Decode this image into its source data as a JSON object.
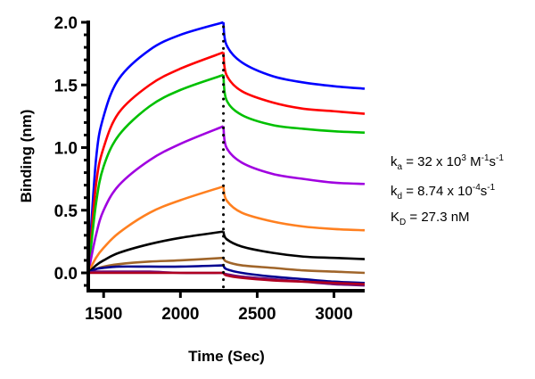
{
  "chart_data": {
    "type": "line",
    "title": "",
    "xlabel": "Time (Sec)",
    "ylabel": "Binding (nm)",
    "xlim": [
      1400,
      3200
    ],
    "ylim": [
      -0.135,
      2.0
    ],
    "xticks": [
      "1500",
      "2000",
      "2500",
      "3000"
    ],
    "xtick_values": [
      1500,
      2000,
      2500,
      3000
    ],
    "yticks": [
      "0.0",
      "0.5",
      "1.0",
      "1.5",
      "2.0"
    ],
    "ytick_values": [
      0.0,
      0.5,
      1.0,
      1.5,
      2.0
    ],
    "grid": false,
    "dissociation_start": 2280,
    "x": [
      1400,
      1450,
      1500,
      1600,
      1800,
      2000,
      2280,
      2300,
      2400,
      2600,
      2800,
      3000,
      3200
    ],
    "series": [
      {
        "color": "#0000ff",
        "values": [
          0,
          0.9,
          1.25,
          1.55,
          1.78,
          1.9,
          2.0,
          1.82,
          1.68,
          1.57,
          1.52,
          1.49,
          1.47
        ]
      },
      {
        "color": "#ff0000",
        "values": [
          0,
          0.7,
          1.0,
          1.28,
          1.5,
          1.63,
          1.76,
          1.58,
          1.45,
          1.36,
          1.31,
          1.29,
          1.27
        ]
      },
      {
        "color": "#00c000",
        "values": [
          0,
          0.55,
          0.85,
          1.1,
          1.33,
          1.46,
          1.58,
          1.38,
          1.26,
          1.18,
          1.15,
          1.13,
          1.12
        ]
      },
      {
        "color": "#a000e0",
        "values": [
          0,
          0.3,
          0.5,
          0.7,
          0.9,
          1.03,
          1.17,
          1.0,
          0.88,
          0.79,
          0.75,
          0.72,
          0.71
        ]
      },
      {
        "color": "#ff8020",
        "values": [
          0,
          0.12,
          0.2,
          0.32,
          0.48,
          0.58,
          0.69,
          0.58,
          0.48,
          0.41,
          0.37,
          0.35,
          0.34
        ]
      },
      {
        "color": "#000000",
        "values": [
          0,
          0.06,
          0.1,
          0.16,
          0.23,
          0.28,
          0.33,
          0.27,
          0.21,
          0.16,
          0.13,
          0.12,
          0.11
        ]
      },
      {
        "color": "#a0652a",
        "values": [
          0,
          0.03,
          0.05,
          0.07,
          0.09,
          0.1,
          0.12,
          0.09,
          0.06,
          0.04,
          0.02,
          0.01,
          0.0
        ]
      },
      {
        "color": "#000090",
        "values": [
          0,
          0.03,
          0.04,
          0.05,
          0.05,
          0.05,
          0.06,
          0.03,
          0.0,
          -0.03,
          -0.05,
          -0.07,
          -0.08
        ]
      },
      {
        "color": "#70107a",
        "values": [
          0,
          0.01,
          0.01,
          0.01,
          0.01,
          0.0,
          0.0,
          -0.01,
          -0.03,
          -0.05,
          -0.07,
          -0.09,
          -0.1
        ]
      },
      {
        "color": "#b00020",
        "values": [
          0,
          0.0,
          0.0,
          0.0,
          0.0,
          0.0,
          0.0,
          -0.02,
          -0.04,
          -0.06,
          -0.07,
          -0.08,
          -0.09
        ]
      }
    ],
    "annotations": [
      {
        "parts": [
          {
            "t": "k"
          },
          {
            "t": "a",
            "s": "sub"
          },
          {
            "t": " = 32 x 10"
          },
          {
            "t": "3",
            "s": "sup"
          },
          {
            "t": " M"
          },
          {
            "t": "-1",
            "s": "sup"
          },
          {
            "t": "s"
          },
          {
            "t": "-1",
            "s": "sup"
          }
        ]
      },
      {
        "parts": [
          {
            "t": "k"
          },
          {
            "t": "d",
            "s": "sub"
          },
          {
            "t": " = 8.74 x 10"
          },
          {
            "t": "-4",
            "s": "sup"
          },
          {
            "t": "s"
          },
          {
            "t": "-1",
            "s": "sup"
          }
        ]
      },
      {
        "parts": [
          {
            "t": "K"
          },
          {
            "t": "D",
            "s": "sub"
          },
          {
            "t": " = 27.3 nM"
          }
        ]
      }
    ]
  }
}
